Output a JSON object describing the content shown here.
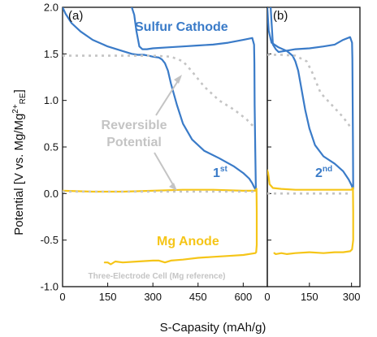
{
  "chart_data": {
    "type": "line",
    "ylabel": "Potential [V vs. Mg/Mg",
    "ylabel_sup": "2+",
    "ylabel_sub": "RE",
    "ylabel_end": "]",
    "xlabel": "S-Capasity (mAh/g)",
    "ylim": [
      -1.0,
      2.0
    ],
    "yticks": [
      "2.0",
      "1.5",
      "1.0",
      "0.5",
      "0.0",
      "-0.5",
      "-1.0"
    ],
    "annotations": {
      "cathode": "Sulfur Cathode",
      "anode": "Mg Anode",
      "reversible_1": "Reversible",
      "reversible_2": "Potential",
      "note": "Three-Electrode Cell (Mg reference)"
    },
    "panels": [
      {
        "label": "(a)",
        "cycle_label": "1",
        "cycle_sup": "st",
        "xlim": [
          0,
          680
        ],
        "xticks": [
          "0",
          "150",
          "300",
          "450",
          "600"
        ],
        "series": [
          {
            "role": "cathode-discharge",
            "color": "#3a7bc8",
            "x": [
              0,
              10,
              30,
              60,
              100,
              150,
              200,
              230,
              250,
              270,
              285,
              300,
              320,
              330,
              340,
              350,
              360,
              380,
              400,
              430,
              470,
              520,
              570,
              600,
              620,
              630,
              636,
              640
            ],
            "y": [
              2.0,
              1.93,
              1.83,
              1.74,
              1.65,
              1.58,
              1.53,
              1.5,
              1.49,
              1.49,
              1.48,
              1.47,
              1.46,
              1.44,
              1.4,
              1.32,
              1.18,
              0.95,
              0.75,
              0.58,
              0.46,
              0.38,
              0.29,
              0.22,
              0.16,
              0.11,
              0.07,
              0.05
            ]
          },
          {
            "role": "cathode-charge",
            "color": "#3a7bc8",
            "x": [
              642,
              640,
              638,
              637,
              636,
              630,
              600,
              550,
              500,
              450,
              400,
              350,
              300,
              280,
              265,
              255,
              245,
              238,
              230
            ],
            "y": [
              0.05,
              0.45,
              0.95,
              1.4,
              1.6,
              1.67,
              1.65,
              1.62,
              1.6,
              1.59,
              1.58,
              1.57,
              1.56,
              1.55,
              1.55,
              1.58,
              1.75,
              1.92,
              2.0
            ]
          },
          {
            "role": "anode-discharge",
            "color": "#f5c518",
            "x": [
              0,
              100,
              200,
              300,
              400,
              500,
              600,
              640,
              644
            ],
            "y": [
              0.03,
              0.02,
              0.02,
              0.03,
              0.04,
              0.04,
              0.03,
              0.03,
              0.05
            ]
          },
          {
            "role": "anode-charge",
            "color": "#f5c518",
            "x": [
              644,
              645,
              645,
              643,
              640,
              600,
              550,
              500,
              450,
              400,
              360,
              340,
              320,
              300,
              250,
              200,
              175,
              160,
              150,
              140
            ],
            "y": [
              0.05,
              -0.2,
              -0.55,
              -0.63,
              -0.64,
              -0.66,
              -0.67,
              -0.68,
              -0.69,
              -0.71,
              -0.72,
              -0.74,
              -0.72,
              -0.72,
              -0.73,
              -0.74,
              -0.73,
              -0.76,
              -0.74,
              -0.74
            ]
          },
          {
            "role": "reversible-upper",
            "color": "#c4c4c4",
            "x": [
              0,
              100,
              200,
              300,
              360,
              400,
              430,
              470,
              520,
              570,
              610,
              640
            ],
            "y": [
              1.48,
              1.48,
              1.48,
              1.48,
              1.47,
              1.42,
              1.31,
              1.15,
              1.0,
              0.9,
              0.8,
              0.7
            ]
          },
          {
            "role": "reversible-lower",
            "color": "#c4c4c4",
            "x": [
              0,
              100,
              200,
              300,
              400,
              500,
              600,
              640
            ],
            "y": [
              0.02,
              0.02,
              0.02,
              0.02,
              0.02,
              0.02,
              0.02,
              0.02
            ]
          }
        ]
      },
      {
        "label": "(b)",
        "cycle_label": "2",
        "cycle_sup": "nd",
        "xlim": [
          0,
          330
        ],
        "xticks": [
          "0",
          "150",
          "300"
        ],
        "series": [
          {
            "role": "cathode-discharge",
            "color": "#3a7bc8",
            "x": [
              0,
              5,
              15,
              40,
              70,
              90,
              100,
              110,
              120,
              135,
              150,
              170,
              200,
              240,
              270,
              290,
              300,
              305
            ],
            "y": [
              2.0,
              1.75,
              1.62,
              1.57,
              1.53,
              1.48,
              1.42,
              1.32,
              1.15,
              0.9,
              0.7,
              0.52,
              0.4,
              0.32,
              0.24,
              0.15,
              0.09,
              0.05
            ]
          },
          {
            "role": "cathode-charge",
            "color": "#3a7bc8",
            "x": [
              306,
              305,
              304,
              303,
              302,
              295,
              270,
              240,
              200,
              150,
              100,
              60,
              40,
              30,
              20,
              12
            ],
            "y": [
              0.05,
              0.55,
              1.05,
              1.45,
              1.62,
              1.68,
              1.65,
              1.6,
              1.58,
              1.56,
              1.55,
              1.53,
              1.52,
              1.55,
              1.6,
              2.0
            ]
          },
          {
            "role": "anode-discharge",
            "color": "#f5c518",
            "x": [
              0,
              3,
              8,
              20,
              50,
              100,
              150,
              200,
              250,
              300,
              305
            ],
            "y": [
              0.25,
              0.22,
              0.1,
              0.06,
              0.05,
              0.04,
              0.04,
              0.04,
              0.04,
              0.04,
              0.06
            ]
          },
          {
            "role": "anode-charge",
            "color": "#f5c518",
            "x": [
              305,
              306,
              306,
              302,
              295,
              270,
              240,
              200,
              150,
              100,
              70,
              50,
              30,
              25
            ],
            "y": [
              0.06,
              -0.2,
              -0.5,
              -0.6,
              -0.62,
              -0.63,
              -0.63,
              -0.64,
              -0.63,
              -0.64,
              -0.65,
              -0.64,
              -0.65,
              -0.64
            ]
          },
          {
            "role": "reversible-upper",
            "color": "#c4c4c4",
            "x": [
              0,
              50,
              100,
              140,
              160,
              190,
              230,
              270,
              300
            ],
            "y": [
              1.49,
              1.49,
              1.48,
              1.42,
              1.3,
              1.08,
              0.95,
              0.82,
              0.7
            ]
          },
          {
            "role": "reversible-lower",
            "color": "#c4c4c4",
            "x": [
              0,
              100,
              200,
              300
            ],
            "y": [
              0.0,
              0.0,
              0.0,
              0.0
            ]
          }
        ]
      }
    ]
  }
}
